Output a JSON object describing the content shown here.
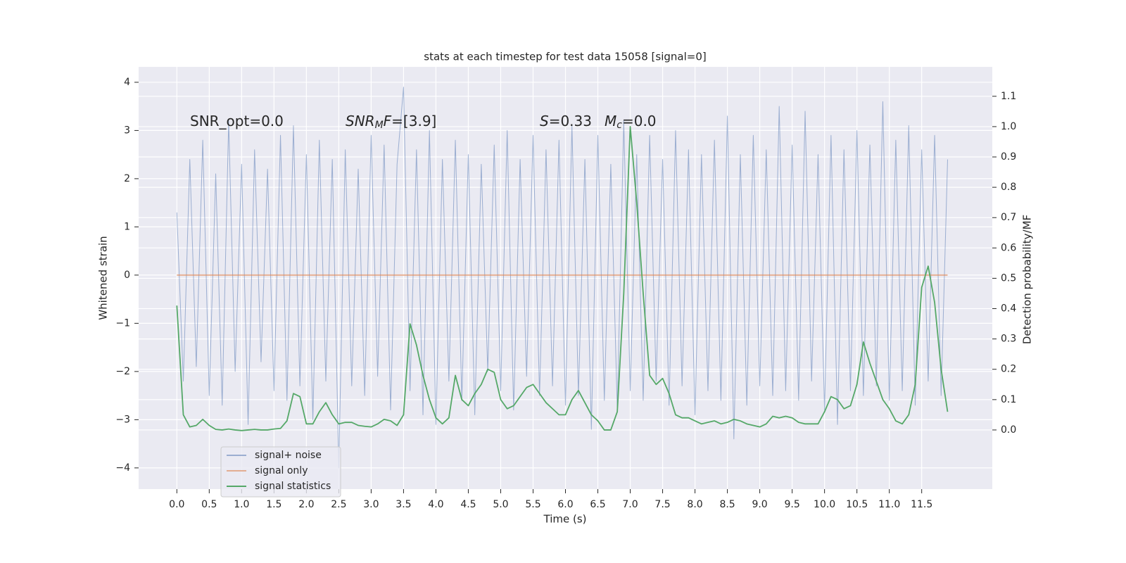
{
  "chart_data": {
    "type": "line",
    "title": "stats at each timestep for test data 15058 [signal=0]",
    "x_label": "Time (s)",
    "y_label": "Whitened strain",
    "y2_label": "Detection probability/MF",
    "annotations": [
      [
        "SNR_opt=0.0"
      ],
      [
        "SNR",
        "M",
        "F",
        "=[3.9]"
      ],
      [
        "S",
        "=0.33"
      ],
      [
        "M",
        "c",
        "=0.0"
      ]
    ],
    "x": [
      0.0,
      0.1,
      0.2,
      0.3,
      0.4,
      0.5,
      0.6,
      0.7,
      0.8,
      0.9,
      1.0,
      1.1,
      1.2,
      1.3,
      1.4,
      1.5,
      1.6,
      1.7,
      1.8,
      1.9,
      2.0,
      2.1,
      2.2,
      2.3,
      2.4,
      2.5,
      2.6,
      2.7,
      2.8,
      2.9,
      3.0,
      3.1,
      3.2,
      3.3,
      3.4,
      3.5,
      3.6,
      3.7,
      3.8,
      3.9,
      4.0,
      4.1,
      4.2,
      4.3,
      4.4,
      4.5,
      4.6,
      4.7,
      4.8,
      4.9,
      5.0,
      5.1,
      5.2,
      5.3,
      5.4,
      5.5,
      5.6,
      5.7,
      5.8,
      5.9,
      6.0,
      6.1,
      6.2,
      6.3,
      6.4,
      6.5,
      6.6,
      6.7,
      6.8,
      6.9,
      7.0,
      7.1,
      7.2,
      7.3,
      7.4,
      7.5,
      7.6,
      7.7,
      7.8,
      7.9,
      8.0,
      8.1,
      8.2,
      8.3,
      8.4,
      8.5,
      8.6,
      8.7,
      8.8,
      8.9,
      9.0,
      9.1,
      9.2,
      9.3,
      9.4,
      9.5,
      9.6,
      9.7,
      9.8,
      9.9,
      10.0,
      10.1,
      10.2,
      10.3,
      10.4,
      10.5,
      10.6,
      10.7,
      10.8,
      10.9,
      11.0,
      11.1,
      11.2,
      11.3,
      11.4,
      11.5,
      11.6,
      11.7,
      11.8,
      11.9
    ],
    "series": [
      {
        "name": "signal+ noise",
        "color": "#4c72b0",
        "values": [
          1.3,
          -2.2,
          2.4,
          -1.9,
          2.8,
          -2.5,
          2.1,
          -2.7,
          3.2,
          -2.0,
          2.3,
          -3.1,
          2.6,
          -1.8,
          2.2,
          -2.4,
          2.9,
          -2.6,
          3.1,
          -2.3,
          2.5,
          -3.0,
          2.8,
          -2.2,
          2.4,
          -4.0,
          2.6,
          -2.3,
          2.2,
          -2.5,
          2.9,
          -2.1,
          2.7,
          -2.8,
          2.3,
          3.9,
          -2.4,
          2.6,
          -2.9,
          3.0,
          -3.1,
          2.4,
          -2.2,
          2.8,
          -2.6,
          2.5,
          -2.9,
          2.3,
          -2.0,
          2.7,
          -2.4,
          3.0,
          -2.8,
          2.4,
          -2.1,
          2.9,
          -2.5,
          2.6,
          -2.3,
          2.8,
          -2.7,
          3.1,
          -2.5,
          2.4,
          -3.2,
          2.9,
          -2.6,
          2.3,
          -2.8,
          3.2,
          -2.4,
          2.5,
          -2.6,
          2.9,
          -2.2,
          2.4,
          -2.7,
          3.0,
          -2.3,
          2.6,
          -2.9,
          2.5,
          -2.4,
          2.8,
          -2.6,
          3.3,
          -3.4,
          2.5,
          -2.7,
          2.9,
          -2.3,
          2.6,
          -2.5,
          3.5,
          -2.4,
          2.7,
          -2.6,
          3.4,
          -2.2,
          2.5,
          -2.8,
          2.9,
          -3.1,
          2.6,
          -2.4,
          3.0,
          -2.5,
          2.7,
          -2.3,
          3.6,
          -2.6,
          2.8,
          -2.4,
          3.1,
          -2.7,
          2.6,
          -2.2,
          2.9,
          -2.5,
          2.4
        ]
      },
      {
        "name": "signal only",
        "color": "#dd8452",
        "x": [
          0.0,
          11.9
        ],
        "values": [
          0,
          0
        ]
      },
      {
        "name": "signal statistics",
        "color": "#55a868",
        "axis": "y2",
        "values": [
          0.41,
          0.05,
          0.01,
          0.015,
          0.035,
          0.015,
          0.002,
          0.0,
          0.003,
          0.0,
          -0.002,
          0.0,
          0.002,
          0.0,
          0.0,
          0.003,
          0.005,
          0.03,
          0.12,
          0.11,
          0.02,
          0.02,
          0.06,
          0.09,
          0.05,
          0.02,
          0.025,
          0.025,
          0.015,
          0.012,
          0.01,
          0.02,
          0.035,
          0.03,
          0.015,
          0.05,
          0.35,
          0.28,
          0.18,
          0.1,
          0.04,
          0.02,
          0.04,
          0.18,
          0.1,
          0.08,
          0.12,
          0.15,
          0.2,
          0.19,
          0.1,
          0.07,
          0.08,
          0.11,
          0.14,
          0.15,
          0.12,
          0.09,
          0.07,
          0.05,
          0.05,
          0.1,
          0.13,
          0.09,
          0.05,
          0.03,
          0.0,
          0.0,
          0.06,
          0.45,
          1.0,
          0.75,
          0.45,
          0.18,
          0.15,
          0.17,
          0.12,
          0.05,
          0.04,
          0.04,
          0.03,
          0.02,
          0.025,
          0.03,
          0.02,
          0.025,
          0.035,
          0.03,
          0.02,
          0.015,
          0.01,
          0.02,
          0.045,
          0.04,
          0.045,
          0.04,
          0.025,
          0.02,
          0.02,
          0.02,
          0.06,
          0.11,
          0.1,
          0.07,
          0.08,
          0.15,
          0.29,
          0.22,
          0.16,
          0.1,
          0.07,
          0.03,
          0.02,
          0.05,
          0.15,
          0.47,
          0.54,
          0.42,
          0.2,
          0.06
        ]
      }
    ],
    "xlim": [
      -0.59,
      12.59
    ],
    "ylim": [
      -4.44,
      4.32
    ],
    "y2lim": [
      -0.195,
      1.197
    ],
    "xticks": [
      {
        "value": 0,
        "label": "0.0"
      },
      0.5,
      {
        "value": 1,
        "label": "1.0"
      },
      1.5,
      {
        "value": 2,
        "label": "2.0"
      },
      2.5,
      {
        "value": 3,
        "label": "3.0"
      },
      3.5,
      {
        "value": 4,
        "label": "4.0"
      },
      4.5,
      {
        "value": 5,
        "label": "5.0"
      },
      5.5,
      {
        "value": 6,
        "label": "6.0"
      },
      6.5,
      {
        "value": 7,
        "label": "7.0"
      },
      7.5,
      {
        "value": 8,
        "label": "8.0"
      },
      8.5,
      {
        "value": 9,
        "label": "9.0"
      },
      9.5,
      {
        "value": 10,
        "label": "10.0"
      },
      10.5,
      {
        "value": 11,
        "label": "11.0"
      },
      11.5
    ],
    "yticks": [
      {
        "value": -4,
        "label": "−4"
      },
      {
        "value": -3,
        "label": "−3"
      },
      {
        "value": -2,
        "label": "−2"
      },
      {
        "value": -1,
        "label": "−1"
      },
      0,
      1,
      2,
      3,
      4
    ],
    "y2ticks": [
      {
        "value": 0,
        "label": "0.0"
      },
      0.1,
      0.2,
      0.3,
      0.4,
      0.5,
      0.6,
      0.7,
      0.8,
      0.9,
      {
        "value": 1,
        "label": "1.0"
      },
      1.1
    ],
    "grid": true,
    "legend": "lower left"
  }
}
